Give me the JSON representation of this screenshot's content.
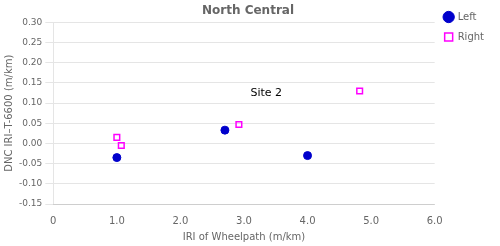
{
  "chart_data": {
    "type": "scatter",
    "title": "North Central",
    "x_label": "IRI of Wheelpath (m/km)",
    "y_label": "DNC IRI–T-6600 (m/km)",
    "xlim": [
      0,
      6.0
    ],
    "ylim": [
      -0.15,
      0.3
    ],
    "xticks": [
      0,
      {
        "value": 1.0,
        "label": "1.0"
      },
      {
        "value": 2.0,
        "label": "2.0"
      },
      {
        "value": 3.0,
        "label": "3.0"
      },
      {
        "value": 4.0,
        "label": "4.0"
      },
      {
        "value": 5.0,
        "label": "5.0"
      },
      {
        "value": 6.0,
        "label": "6.0"
      }
    ],
    "yticks": [
      -0.15,
      {
        "value": -0.1,
        "label": "-0.10"
      },
      -0.05,
      {
        "value": 0.0,
        "label": "0.00"
      },
      0.05,
      {
        "value": 0.1,
        "label": "0.10"
      },
      0.15,
      {
        "value": 0.2,
        "label": "0.20"
      },
      0.25,
      {
        "value": 0.3,
        "label": "0.30"
      }
    ],
    "grid": "y",
    "legend": "right",
    "series": [
      {
        "name": "Left",
        "color": "#0000CC",
        "marker": "circle",
        "x": [
          1.0,
          2.7,
          4.0
        ],
        "values": [
          -0.035,
          0.033,
          -0.03
        ]
      },
      {
        "name": "Right",
        "color": "#FF00FF",
        "marker": "open_square",
        "x": [
          1.0,
          1.07,
          2.92,
          4.82
        ],
        "values": [
          0.015,
          -0.005,
          0.047,
          0.13
        ]
      }
    ],
    "annotations": [
      {
        "text": "Site 2",
        "x": 3.6,
        "y": 0.125
      }
    ]
  }
}
